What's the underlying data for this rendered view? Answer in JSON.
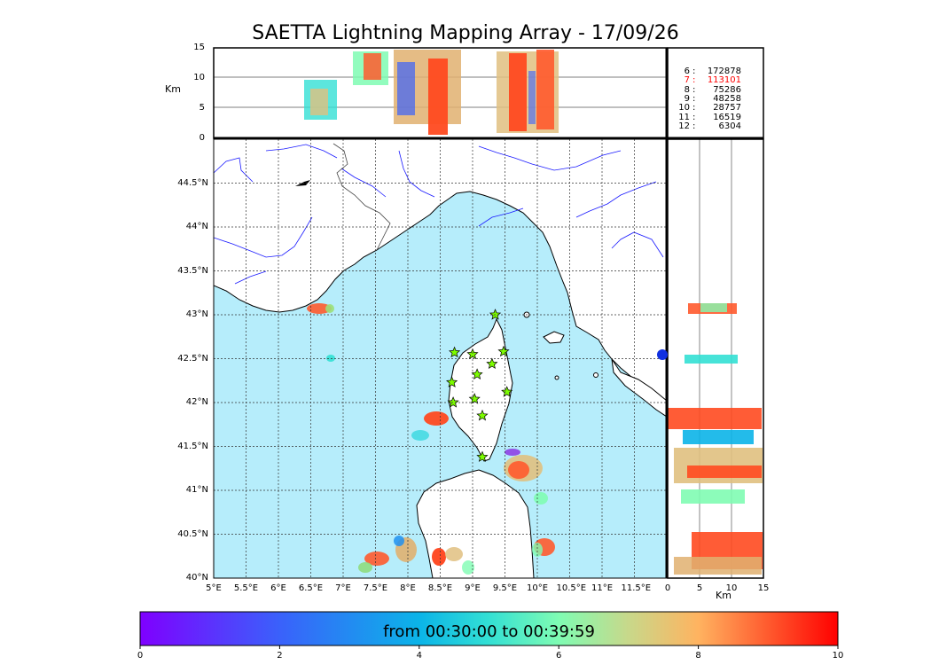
{
  "title": "SAETTA Lightning Mapping Array - 17/09/26",
  "altitude_panel": {
    "ylabel": "Km",
    "yticks": [
      "0",
      "5",
      "10",
      "15"
    ]
  },
  "side_panel": {
    "xlabel": "Km",
    "xticks": [
      "0",
      "5",
      "10",
      "15"
    ]
  },
  "map": {
    "lon_ticks": [
      "5°E",
      "5.5°E",
      "6°E",
      "6.5°E",
      "7°E",
      "7.5°E",
      "8°E",
      "8.5°E",
      "9°E",
      "9.5°E",
      "10°E",
      "10.5°E",
      "11°E",
      "11.5°E"
    ],
    "lat_ticks": [
      "40°N",
      "40.5°N",
      "41°N",
      "41.5°N",
      "42°N",
      "42.5°N",
      "43°N",
      "43.5°N",
      "44°N",
      "44.5°N"
    ],
    "lon_range": [
      5,
      12
    ],
    "lat_range": [
      40,
      45
    ],
    "colors": {
      "sea": "#b6edfb",
      "land": "#ffffff",
      "rivers": "#1a1aff",
      "stations": "#7cfc00"
    }
  },
  "counts": [
    {
      "hour": "6",
      "sep": ":",
      "value": "172878",
      "color": "#000000"
    },
    {
      "hour": "7",
      "sep": ":",
      "value": "113101",
      "color": "#ff0000"
    },
    {
      "hour": "8",
      "sep": ":",
      "value": "75286",
      "color": "#000000"
    },
    {
      "hour": "9",
      "sep": ":",
      "value": "48258",
      "color": "#000000"
    },
    {
      "hour": "10",
      "sep": ":",
      "value": "28757",
      "color": "#000000"
    },
    {
      "hour": "11",
      "sep": ":",
      "value": "16519",
      "color": "#000000"
    },
    {
      "hour": "12",
      "sep": ":",
      "value": "6304",
      "color": "#000000"
    }
  ],
  "colorbar": {
    "text": "from 00:30:00 to 00:39:59",
    "ticks": [
      "0",
      "2",
      "4",
      "6",
      "8",
      "10"
    ],
    "range": [
      0,
      10
    ]
  }
}
